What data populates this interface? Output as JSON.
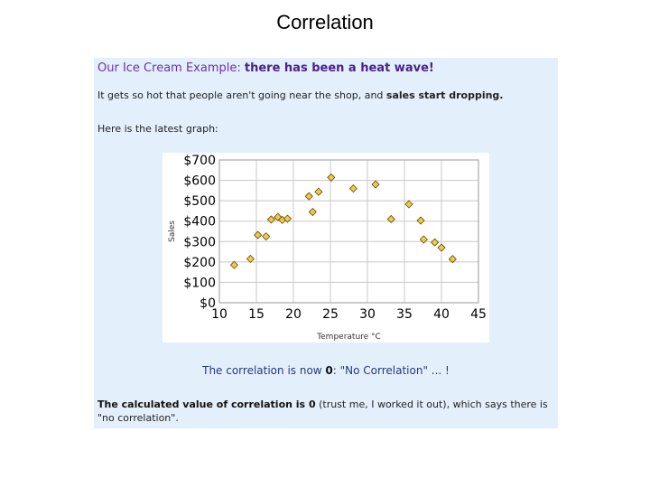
{
  "slide": {
    "title": "Correlation"
  },
  "panel": {
    "heading_prefix": "Our Ice Cream Example: ",
    "heading_bold": "there has been a heat wave!",
    "line1_prefix": "It gets so hot that people aren't going near the shop, and ",
    "line1_bold": "sales start dropping.",
    "line2": "Here is the latest graph:",
    "caption_prefix": "The correlation is now ",
    "caption_bold": "0",
    "caption_suffix": ": \"No Correlation\" ... !",
    "footnote_bold": "The calculated value of correlation is 0",
    "footnote_rest": " (trust me, I worked it out), which says there is \"no correlation\"."
  },
  "colors": {
    "panel_bg": "#e3f0fc",
    "marker_fill": "#f2c94c",
    "marker_stroke": "#5a4a00",
    "heading": "#6b2fb0"
  },
  "chart_data": {
    "type": "scatter",
    "title": "",
    "xlabel": "Temperature °C",
    "ylabel": "Sales",
    "xlim": [
      10,
      45
    ],
    "ylim": [
      0,
      700
    ],
    "x_ticks": [
      "10",
      "15",
      "20",
      "25",
      "30",
      "35",
      "40",
      "45"
    ],
    "y_ticks": [
      "$0",
      "$100",
      "$200",
      "$300",
      "$400",
      "$500",
      "$600",
      "$700"
    ],
    "grid": true,
    "points": [
      {
        "x": 12,
        "y": 185
      },
      {
        "x": 14.2,
        "y": 215
      },
      {
        "x": 15.2,
        "y": 332
      },
      {
        "x": 16.3,
        "y": 325
      },
      {
        "x": 17,
        "y": 408
      },
      {
        "x": 17.9,
        "y": 420
      },
      {
        "x": 18.5,
        "y": 406
      },
      {
        "x": 19.2,
        "y": 412
      },
      {
        "x": 22.1,
        "y": 522
      },
      {
        "x": 22.6,
        "y": 445
      },
      {
        "x": 23.4,
        "y": 544
      },
      {
        "x": 25.1,
        "y": 614
      },
      {
        "x": 28.1,
        "y": 560
      },
      {
        "x": 31.1,
        "y": 580
      },
      {
        "x": 33.2,
        "y": 410
      },
      {
        "x": 35.6,
        "y": 483
      },
      {
        "x": 37.2,
        "y": 403
      },
      {
        "x": 37.6,
        "y": 310
      },
      {
        "x": 39.1,
        "y": 296
      },
      {
        "x": 40,
        "y": 270
      },
      {
        "x": 41.5,
        "y": 214
      }
    ]
  }
}
